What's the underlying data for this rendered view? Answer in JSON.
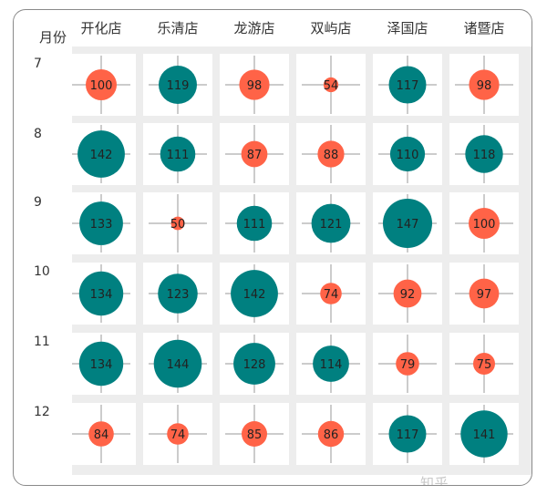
{
  "chart_data": {
    "type": "bubble-matrix",
    "row_header": "月份",
    "columns": [
      "开化店",
      "乐清店",
      "龙游店",
      "双屿店",
      "泽国店",
      "诸暨店"
    ],
    "rows": [
      "7",
      "8",
      "9",
      "10",
      "11",
      "12"
    ],
    "values": [
      [
        100,
        119,
        98,
        54,
        117,
        98
      ],
      [
        142,
        111,
        87,
        88,
        110,
        118
      ],
      [
        133,
        50,
        111,
        121,
        147,
        100
      ],
      [
        134,
        123,
        142,
        74,
        92,
        97
      ],
      [
        134,
        144,
        128,
        114,
        79,
        75
      ],
      [
        84,
        74,
        85,
        86,
        117,
        141
      ]
    ],
    "threshold": 100,
    "colors": {
      "above": "#008080",
      "at_or_below": "#ff6347",
      "grid": "#ededed",
      "crosshair": "#999999"
    }
  },
  "watermark": "知乎 @wujunmin"
}
